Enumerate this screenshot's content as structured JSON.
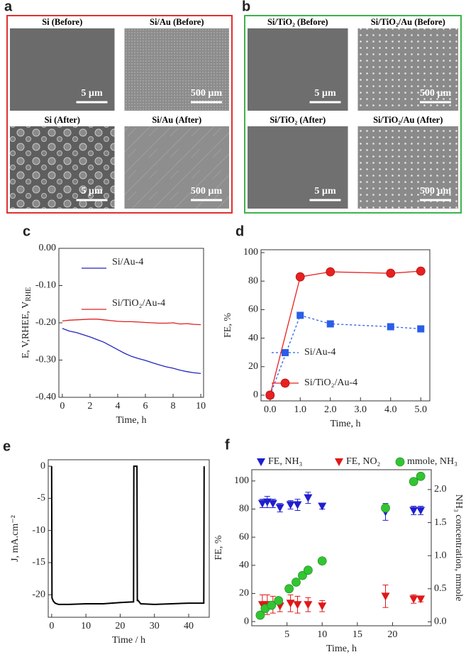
{
  "image_panels": [
    {
      "letter": "a",
      "images": [
        {
          "label": "Si (Before)",
          "scale": "5 µm"
        },
        {
          "label": "Si/Au (Before)",
          "scale": "500 µm"
        },
        {
          "label": "Si (After)",
          "scale": "5 µm"
        },
        {
          "label": "Si/Au (After)",
          "scale": "500 µm"
        }
      ]
    },
    {
      "letter": "b",
      "images": [
        {
          "label": "Si/TiO₂ (Before)",
          "scale": "5 µm"
        },
        {
          "label": "Si/TiO₂/Au (Before)",
          "scale": "500 µm"
        },
        {
          "label": "Si/TiO₂ (After)",
          "scale": "5 µm"
        },
        {
          "label": "Si/TiO₂/Au (After)",
          "scale": "500 µm"
        }
      ]
    }
  ],
  "chart_data": [
    {
      "type": "line",
      "letter": "c",
      "xlabel": "Time, h",
      "ylabel": [
        "E, V",
        "RHE"
      ],
      "xlim": [
        -0.25,
        10.2
      ],
      "ylim": [
        -0.4,
        0.0
      ],
      "xticks": [
        0,
        2,
        4,
        6,
        8,
        10
      ],
      "yticks": [
        {
          "value": 0,
          "label": "0.00"
        },
        {
          "value": -0.1,
          "label": "-0.10"
        },
        {
          "value": -0.2,
          "label": "-0.20"
        },
        {
          "value": -0.3,
          "label": "-0.30"
        },
        {
          "value": -0.4,
          "label": "-0.40"
        }
      ],
      "series": [
        {
          "name": "Si/Au-4",
          "color": "#2424c0",
          "x": [
            0,
            0.5,
            1,
            1.5,
            2,
            2.5,
            3,
            3.5,
            4,
            4.5,
            5,
            5.5,
            6,
            6.5,
            7,
            7.5,
            8,
            8.5,
            9,
            9.5,
            10
          ],
          "values": [
            -0.215,
            -0.222,
            -0.226,
            -0.232,
            -0.238,
            -0.245,
            -0.252,
            -0.262,
            -0.272,
            -0.282,
            -0.29,
            -0.296,
            -0.301,
            -0.307,
            -0.313,
            -0.318,
            -0.322,
            -0.327,
            -0.331,
            -0.334,
            -0.336
          ]
        },
        {
          "name": "Si/TiO₂/Au-4",
          "color": "#e02020",
          "x": [
            0,
            0.5,
            1,
            1.5,
            2,
            2.5,
            3,
            3.5,
            4,
            4.5,
            5,
            5.5,
            6,
            6.5,
            7,
            7.5,
            8,
            8.5,
            9,
            9.5,
            10
          ],
          "values": [
            -0.195,
            -0.193,
            -0.192,
            -0.191,
            -0.19,
            -0.19,
            -0.192,
            -0.194,
            -0.196,
            -0.197,
            -0.197,
            -0.198,
            -0.199,
            -0.2,
            -0.201,
            -0.201,
            -0.2,
            -0.203,
            -0.202,
            -0.204,
            -0.205
          ]
        }
      ]
    },
    {
      "type": "line",
      "letter": "d",
      "xlabel": "Time, h",
      "ylabel": "FE, %",
      "xlim": [
        -0.3,
        5.3
      ],
      "ylim": [
        -4,
        102
      ],
      "xticks": [
        {
          "value": 0,
          "label": "0.0"
        },
        {
          "value": 1,
          "label": "1.0"
        },
        {
          "value": 2,
          "label": "2.0"
        },
        {
          "value": 3,
          "label": "3.0"
        },
        {
          "value": 4,
          "label": "4.0"
        },
        {
          "value": 5,
          "label": "5.0"
        }
      ],
      "yticks": [
        0,
        20,
        40,
        60,
        80,
        100
      ],
      "series": [
        {
          "name": "Si/Au-4",
          "color": "#2a5ee8",
          "marker": "square",
          "dash": true,
          "x": [
            0,
            1,
            2,
            4,
            5
          ],
          "values": [
            0,
            56,
            50,
            48,
            46.5
          ]
        },
        {
          "name": "Si/TiO₂/Au-4",
          "color": "#e82020",
          "marker": "circle",
          "x": [
            0,
            1,
            2,
            4,
            5
          ],
          "values": [
            0,
            83,
            86.5,
            85.5,
            87
          ]
        }
      ]
    },
    {
      "type": "line",
      "letter": "e",
      "xlabel": "Time / h",
      "ylabel": "J, mA.cm⁻²",
      "xlim": [
        -1,
        46
      ],
      "ylim": [
        -23.5,
        1
      ],
      "xticks": [
        0,
        10,
        20,
        30,
        40
      ],
      "yticks": [
        0,
        -5,
        -10,
        -15,
        -20
      ],
      "series": [
        {
          "color": "#000000",
          "x": [
            0,
            0.1,
            0.5,
            1,
            2,
            5,
            10,
            15,
            20,
            23.9,
            24,
            24.1,
            24.9,
            25,
            25.1,
            26,
            30,
            35,
            40,
            44.4,
            44.5
          ],
          "values": [
            0,
            -20.5,
            -21,
            -21.3,
            -21.5,
            -21.5,
            -21.4,
            -21.4,
            -21.2,
            -21.1,
            0,
            0,
            0,
            -21,
            -20.8,
            -21.4,
            -21.5,
            -21.4,
            -21.3,
            -21.3,
            0
          ]
        }
      ]
    },
    {
      "type": "scatter",
      "letter": "f",
      "xlabel": "Time, h",
      "ylabel": "FE, %",
      "y2label": "NH₃ concentration, mmole",
      "xlim": [
        0,
        25.5
      ],
      "ylim": [
        -3,
        108
      ],
      "y2lim": [
        -0.06,
        2.3
      ],
      "xticks": [
        5,
        10,
        15,
        20
      ],
      "yticks": [
        0,
        20,
        40,
        60,
        80,
        100
      ],
      "y2ticks": [
        {
          "value": 0,
          "label": "0.0"
        },
        {
          "value": 0.5,
          "label": "0.5"
        },
        {
          "value": 1,
          "label": "1.0"
        },
        {
          "value": 1.5,
          "label": "1.5"
        },
        {
          "value": 2,
          "label": "2.0"
        }
      ],
      "series": [
        {
          "name": "FE, NH₃",
          "color": "#1f1fd0",
          "marker": "triangle-down",
          "x": [
            1.5,
            2.2,
            3,
            4,
            5.5,
            6.5,
            8,
            10,
            19,
            23,
            24
          ],
          "values": [
            84,
            85,
            84,
            81,
            83,
            83,
            88,
            82,
            78,
            79,
            79
          ],
          "errors": [
            3,
            4,
            3,
            3,
            3,
            4,
            4,
            2,
            6,
            3,
            3
          ]
        },
        {
          "name": "FE, NO₂",
          "color": "#e01818",
          "marker": "triangle-down",
          "x": [
            1.5,
            2.2,
            3,
            4,
            5.5,
            6.5,
            8,
            10,
            19,
            23,
            24
          ],
          "values": [
            12,
            12,
            12,
            11,
            13,
            12,
            12,
            11,
            18,
            16,
            16
          ],
          "errors": [
            7,
            7,
            6,
            4,
            6,
            6,
            5,
            4,
            8,
            3,
            2
          ]
        },
        {
          "name": "mmole, NH₃",
          "color": "#33c433",
          "marker": "circle",
          "axis": "y2",
          "x": [
            1.2,
            1.9,
            2.8,
            3.8,
            5.3,
            6.3,
            7.2,
            8,
            10,
            19,
            23,
            24
          ],
          "values": [
            0.1,
            0.2,
            0.25,
            0.32,
            0.5,
            0.6,
            0.7,
            0.78,
            0.92,
            1.72,
            2.12,
            2.2
          ]
        }
      ]
    }
  ]
}
